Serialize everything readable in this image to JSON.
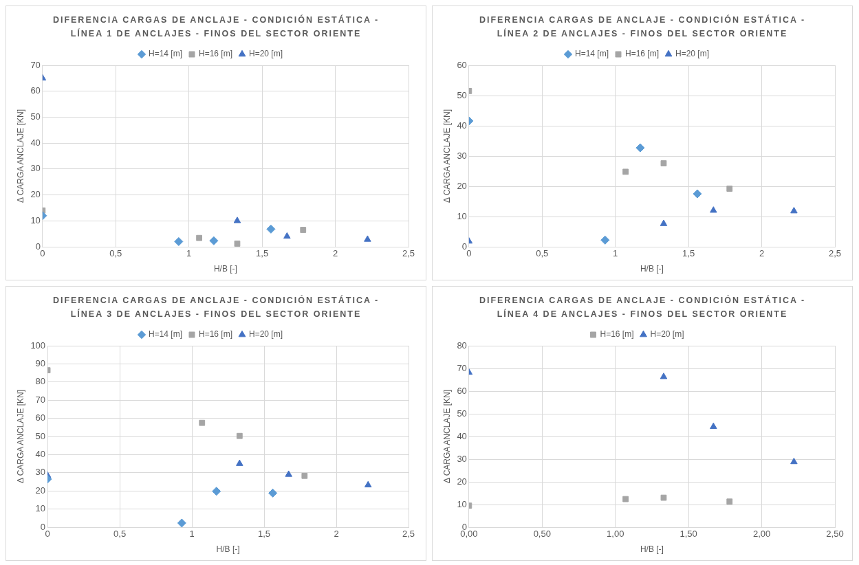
{
  "chart_data": [
    {
      "type": "scatter",
      "title": "DIFERENCIA CARGAS DE ANCLAJE - CONDICIÓN ESTÁTICA - LÍNEA 1 DE ANCLAJES - FINOS DEL SECTOR ORIENTE",
      "xlabel": "H/B [-]",
      "ylabel": "Δ CARGA ANCLAJE [KN]",
      "xlim": [
        0,
        2.5
      ],
      "xticks": [
        0,
        {
          "value": 0.5,
          "label": "0,5"
        },
        1,
        {
          "value": 1.5,
          "label": "1,5"
        },
        2,
        {
          "value": 2.5,
          "label": "2,5"
        }
      ],
      "ylim": [
        0,
        70
      ],
      "yticks": [
        0,
        10,
        20,
        30,
        40,
        50,
        60,
        70
      ],
      "grid": true,
      "legend": "top",
      "series": [
        {
          "name": "H=14 [m]",
          "color": "#5b9bd5",
          "marker": "diamond",
          "x": [
            0,
            0.93,
            1.17,
            1.56
          ],
          "values": [
            12,
            2,
            2.3,
            6.8
          ]
        },
        {
          "name": "H=16 [m]",
          "color": "#a5a5a5",
          "marker": "square",
          "x": [
            0,
            1.07,
            1.33,
            1.78
          ],
          "values": [
            14,
            3.4,
            1.2,
            6.5
          ]
        },
        {
          "name": "H=20 [m]",
          "color": "#4472c4",
          "marker": "triangle",
          "x": [
            0,
            1.33,
            1.67,
            2.22
          ],
          "values": [
            65,
            10,
            4,
            2.8
          ]
        }
      ]
    },
    {
      "type": "scatter",
      "title": "DIFERENCIA CARGAS DE ANCLAJE - CONDICIÓN ESTÁTICA - LÍNEA 2 DE ANCLAJES - FINOS DEL SECTOR ORIENTE",
      "xlabel": "H/B [-]",
      "ylabel": "Δ CARGA ANCLAJE [KN]",
      "xlim": [
        0,
        2.5
      ],
      "xticks": [
        0,
        {
          "value": 0.5,
          "label": "0,5"
        },
        1,
        {
          "value": 1.5,
          "label": "1,5"
        },
        2,
        {
          "value": 2.5,
          "label": "2,5"
        }
      ],
      "ylim": [
        0,
        60
      ],
      "yticks": [
        0,
        10,
        20,
        30,
        40,
        50,
        60
      ],
      "grid": true,
      "legend": "top",
      "series": [
        {
          "name": "H=14 [m]",
          "color": "#5b9bd5",
          "marker": "diamond",
          "x": [
            0,
            0.93,
            1.17,
            1.56
          ],
          "values": [
            41.6,
            2.2,
            32.7,
            17.5
          ]
        },
        {
          "name": "H=16 [m]",
          "color": "#a5a5a5",
          "marker": "square",
          "x": [
            0,
            1.07,
            1.33,
            1.78
          ],
          "values": [
            51.5,
            24.8,
            27.6,
            19.2
          ]
        },
        {
          "name": "H=20 [m]",
          "color": "#4472c4",
          "marker": "triangle",
          "x": [
            0,
            1.33,
            1.67,
            2.22
          ],
          "values": [
            1.8,
            7.6,
            12,
            11.8
          ]
        }
      ]
    },
    {
      "type": "scatter",
      "title": "DIFERENCIA CARGAS DE ANCLAJE - CONDICIÓN ESTÁTICA - LÍNEA 3 DE ANCLAJES - FINOS DEL SECTOR ORIENTE",
      "xlabel": "H/B [-]",
      "ylabel": "Δ CARGA ANCLAJE [KN]",
      "xlim": [
        0,
        2.5
      ],
      "xticks": [
        0,
        {
          "value": 0.5,
          "label": "0,5"
        },
        1,
        {
          "value": 1.5,
          "label": "1,5"
        },
        2,
        {
          "value": 2.5,
          "label": "2,5"
        }
      ],
      "ylim": [
        0,
        100
      ],
      "yticks": [
        0,
        10,
        20,
        30,
        40,
        50,
        60,
        70,
        80,
        90,
        100
      ],
      "grid": true,
      "legend": "top",
      "series": [
        {
          "name": "H=14 [m]",
          "color": "#5b9bd5",
          "marker": "diamond",
          "x": [
            0,
            0.93,
            1.17,
            1.56
          ],
          "values": [
            26.5,
            2.3,
            19.8,
            18.8
          ]
        },
        {
          "name": "H=16 [m]",
          "color": "#a5a5a5",
          "marker": "square",
          "x": [
            0,
            1.07,
            1.33,
            1.78
          ],
          "values": [
            86.5,
            57.5,
            50.3,
            28.3
          ]
        },
        {
          "name": "H=20 [m]",
          "color": "#4472c4",
          "marker": "triangle",
          "x": [
            0,
            1.33,
            1.67,
            2.22
          ],
          "values": [
            28.5,
            35,
            29,
            23.2
          ]
        }
      ]
    },
    {
      "type": "scatter",
      "title": "DIFERENCIA CARGAS DE ANCLAJE - CONDICIÓN ESTÁTICA - LÍNEA 4 DE ANCLAJES - FINOS DEL SECTOR ORIENTE",
      "xlabel": "H/B [-]",
      "ylabel": "Δ CARGA ANCLAJE [KN]",
      "xlim": [
        0,
        2.5
      ],
      "xticks": [
        {
          "value": 0,
          "label": "0,00"
        },
        {
          "value": 0.5,
          "label": "0,50"
        },
        {
          "value": 1,
          "label": "1,00"
        },
        {
          "value": 1.5,
          "label": "1,50"
        },
        {
          "value": 2,
          "label": "2,00"
        },
        {
          "value": 2.5,
          "label": "2,50"
        }
      ],
      "ylim": [
        0,
        80
      ],
      "yticks": [
        0,
        10,
        20,
        30,
        40,
        50,
        60,
        70,
        80
      ],
      "grid": true,
      "legend": "top",
      "series": [
        {
          "name": "H=16 [m]",
          "color": "#a5a5a5",
          "marker": "square",
          "x": [
            0,
            1.07,
            1.33,
            1.78
          ],
          "values": [
            9.5,
            12.4,
            13,
            11.3
          ]
        },
        {
          "name": "H=20 [m]",
          "color": "#4472c4",
          "marker": "triangle",
          "x": [
            0,
            1.33,
            1.67,
            2.22
          ],
          "values": [
            68.2,
            66.3,
            44.3,
            28.8
          ]
        }
      ]
    }
  ]
}
